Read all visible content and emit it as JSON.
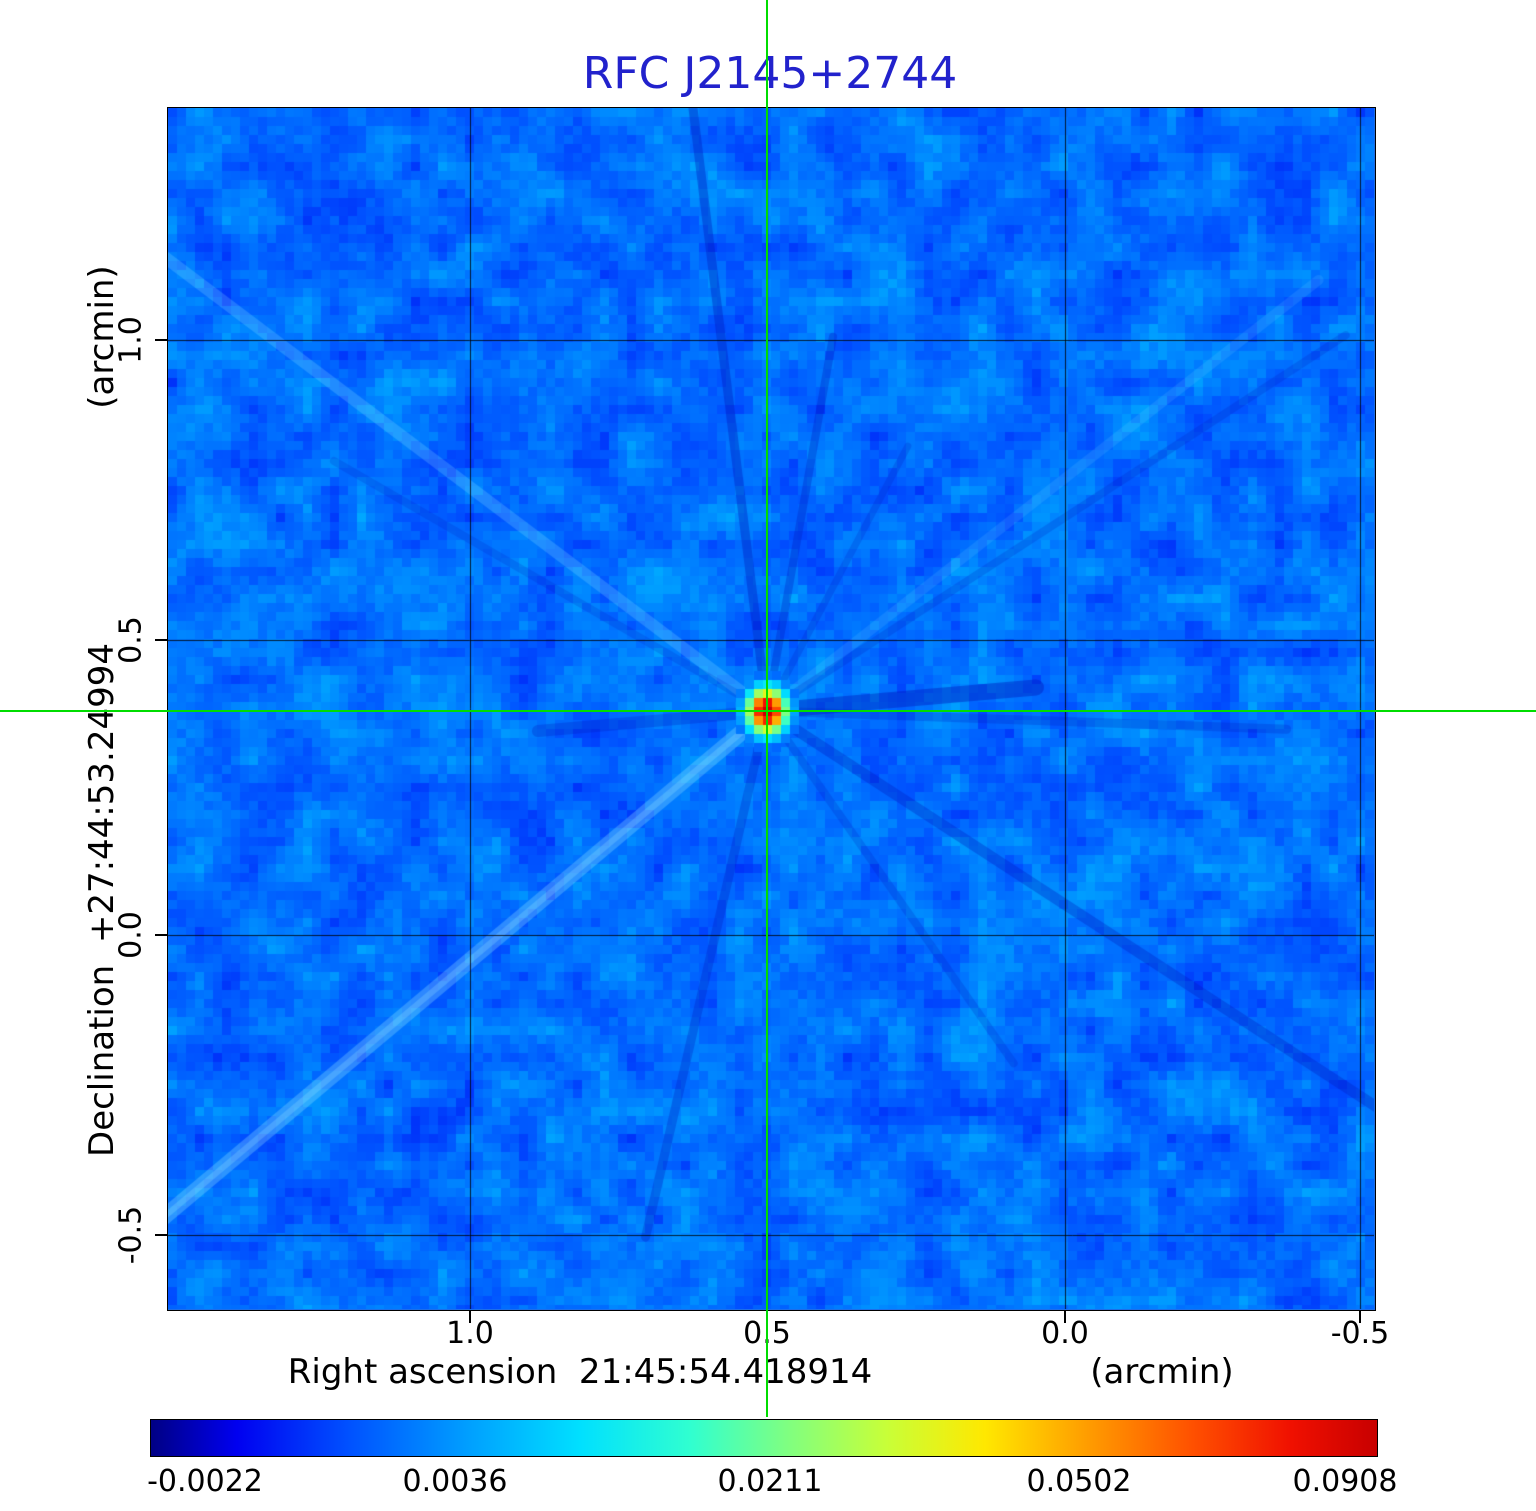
{
  "title": "RFC J2145+2744",
  "colors": {
    "title": "#2222cc",
    "crosshair": "#00dd00",
    "axis_text": "#000000"
  },
  "axes": {
    "ylabel": "Declination  +27:44:53.24994",
    "ylabel_unit": "(arcmin)",
    "xlabel": "Right ascension  21:45:54.418914",
    "xlabel_unit": "(arcmin)",
    "x_ticks": [
      "1.0",
      "0.5",
      "0.0",
      "-0.5"
    ],
    "y_ticks": [
      "1.0",
      "0.5",
      "0.0",
      "-0.5"
    ]
  },
  "colorbar": {
    "labels": [
      "-0.0022",
      "0.0036",
      "0.0211",
      "0.0502",
      "0.0908"
    ]
  },
  "chart_data": {
    "type": "heatmap",
    "title": "RFC J2145+2744",
    "xlabel": "Right ascension  21:45:54.418914 (arcmin)",
    "ylabel": "Declination  +27:44:53.24994 (arcmin)",
    "x_tick_values": [
      1.0,
      0.5,
      0.0,
      -0.5
    ],
    "y_tick_values": [
      1.0,
      0.5,
      0.0,
      -0.5
    ],
    "x_range": [
      1.5,
      -0.53
    ],
    "y_range": [
      -0.63,
      1.39
    ],
    "grid": true,
    "colormap": "jet",
    "colorbar_tick_values": [
      -0.0022,
      0.0036,
      0.0211,
      0.0502,
      0.0908
    ],
    "colormap_stops": [
      {
        "pos": 0.0,
        "color": "#000084"
      },
      {
        "pos": 0.07,
        "color": "#0000f0"
      },
      {
        "pos": 0.16,
        "color": "#0050ff"
      },
      {
        "pos": 0.26,
        "color": "#00a0ff"
      },
      {
        "pos": 0.35,
        "color": "#00e0ff"
      },
      {
        "pos": 0.44,
        "color": "#30ffd0"
      },
      {
        "pos": 0.52,
        "color": "#80ff80"
      },
      {
        "pos": 0.6,
        "color": "#c8ff38"
      },
      {
        "pos": 0.68,
        "color": "#ffe800"
      },
      {
        "pos": 0.76,
        "color": "#ffa000"
      },
      {
        "pos": 0.85,
        "color": "#ff5000"
      },
      {
        "pos": 0.93,
        "color": "#f01000"
      },
      {
        "pos": 1.0,
        "color": "#c80000"
      }
    ],
    "peak": {
      "x_arcmin": 0.5,
      "y_arcmin": 0.38,
      "value": 0.0908
    },
    "crosshair_arcmin": [
      0.5,
      0.38
    ],
    "description": "Radio continuum map: compact bright source at the green crosshair on a blue noise background with radial sidelobe streaks"
  }
}
